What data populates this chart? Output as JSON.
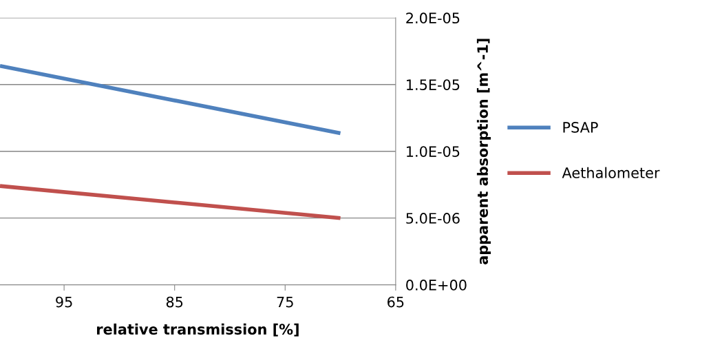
{
  "chart_data": {
    "type": "line",
    "xlabel": "relative transmission [%]",
    "ylabel": "apparent absorption [m^-1]",
    "x": [
      100.8,
      70
    ],
    "series": [
      {
        "name": "PSAP",
        "color": "#4f81bd",
        "values": [
          1.64e-05,
          1.135e-05
        ]
      },
      {
        "name": "Aethalometer",
        "color": "#c0504d",
        "values": [
          7.4e-06,
          5e-06
        ]
      }
    ],
    "xlim": [
      100.8,
      65
    ],
    "xticks": [
      95,
      85,
      75,
      65
    ],
    "ylim": [
      0,
      2e-05
    ],
    "yticks": [
      {
        "value": 0,
        "label": "0.0E+00"
      },
      {
        "value": 5e-06,
        "label": "5.0E-06"
      },
      {
        "value": 1e-05,
        "label": "1.0E-05"
      },
      {
        "value": 1.5e-05,
        "label": "1.5E-05"
      },
      {
        "value": 2e-05,
        "label": "2.0E-05"
      }
    ],
    "grid": "y",
    "legend": "right",
    "marker": "none",
    "line_style": "solid"
  }
}
